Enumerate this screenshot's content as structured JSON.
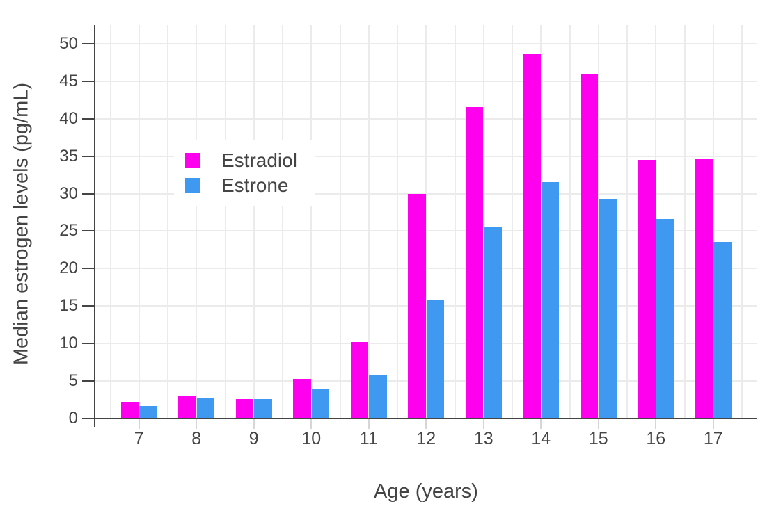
{
  "chart_data": {
    "type": "bar",
    "title": "",
    "xlabel": "Age (years)",
    "ylabel": "Median estrogen levels (pg/mL)",
    "categories": [
      "7",
      "8",
      "9",
      "10",
      "11",
      "12",
      "13",
      "14",
      "15",
      "16",
      "17"
    ],
    "series": [
      {
        "name": "Estradiol",
        "color": "#ff00ee",
        "values": [
          2.2,
          3.1,
          2.6,
          5.3,
          10.2,
          30.0,
          41.6,
          48.6,
          45.9,
          34.5,
          34.6
        ]
      },
      {
        "name": "Estrone",
        "color": "#4099f0",
        "values": [
          1.7,
          2.7,
          2.6,
          4.0,
          5.8,
          15.8,
          25.5,
          31.5,
          29.3,
          26.6,
          23.6
        ]
      }
    ],
    "ylim": [
      0,
      52.5
    ],
    "yticks": [
      0,
      5,
      10,
      15,
      20,
      25,
      30,
      35,
      40,
      45,
      50
    ],
    "grid": true,
    "legend_position": "inside-upper-left",
    "axis_color": "#444444",
    "gridline_color": "#ebebeb",
    "background_color": "#ffffff"
  }
}
